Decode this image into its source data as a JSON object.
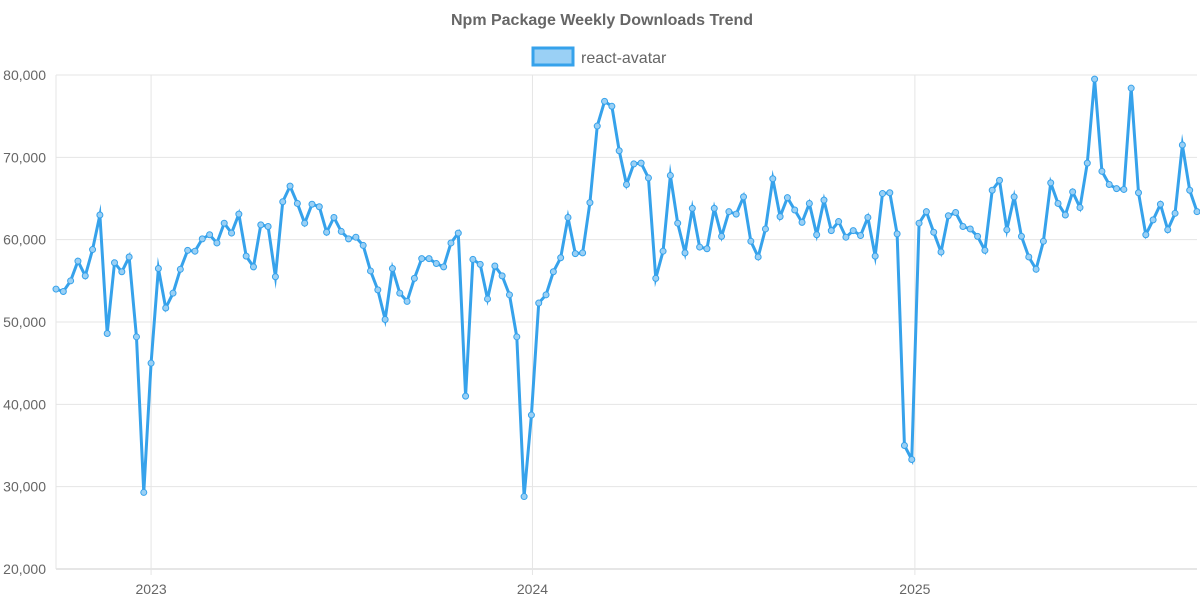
{
  "chart_data": {
    "type": "line",
    "title": "Npm Package Weekly Downloads Trend",
    "xlabel": "",
    "ylabel": "",
    "ylim": [
      20000,
      80000
    ],
    "y_ticks": [
      20000,
      30000,
      40000,
      50000,
      60000,
      70000,
      80000
    ],
    "y_tick_labels": [
      "20,000",
      "30,000",
      "40,000",
      "50,000",
      "60,000",
      "70,000",
      "80,000"
    ],
    "x_range": [
      "2022-10-02",
      "2025-09-28"
    ],
    "x_ticks": [
      "2023-01-01",
      "2024-01-01",
      "2025-01-01"
    ],
    "x_tick_labels": [
      "2023",
      "2024",
      "2025"
    ],
    "grid": true,
    "legend_position": "top-center",
    "colors": {
      "line": "#36a2eb",
      "fill": "#9ad0f5"
    },
    "series": [
      {
        "name": "react-avatar",
        "x": [
          "2022-10-02",
          "2022-10-09",
          "2022-10-16",
          "2022-10-23",
          "2022-10-30",
          "2022-11-06",
          "2022-11-13",
          "2022-11-20",
          "2022-11-27",
          "2022-12-04",
          "2022-12-11",
          "2022-12-18",
          "2022-12-25",
          "2023-01-01",
          "2023-01-08",
          "2023-01-15",
          "2023-01-22",
          "2023-01-29",
          "2023-02-05",
          "2023-02-12",
          "2023-02-19",
          "2023-02-26",
          "2023-03-05",
          "2023-03-12",
          "2023-03-19",
          "2023-03-26",
          "2023-04-02",
          "2023-04-09",
          "2023-04-16",
          "2023-04-23",
          "2023-04-30",
          "2023-05-07",
          "2023-05-14",
          "2023-05-21",
          "2023-05-28",
          "2023-06-04",
          "2023-06-11",
          "2023-06-18",
          "2023-06-25",
          "2023-07-02",
          "2023-07-09",
          "2023-07-16",
          "2023-07-23",
          "2023-07-30",
          "2023-08-06",
          "2023-08-13",
          "2023-08-20",
          "2023-08-27",
          "2023-09-03",
          "2023-09-10",
          "2023-09-17",
          "2023-09-24",
          "2023-10-01",
          "2023-10-08",
          "2023-10-15",
          "2023-10-22",
          "2023-10-29",
          "2023-11-05",
          "2023-11-12",
          "2023-11-19",
          "2023-11-26",
          "2023-12-03",
          "2023-12-10",
          "2023-12-17",
          "2023-12-24",
          "2023-12-31",
          "2024-01-07",
          "2024-01-14",
          "2024-01-21",
          "2024-01-28",
          "2024-02-04",
          "2024-02-11",
          "2024-02-18",
          "2024-02-25",
          "2024-03-03",
          "2024-03-10",
          "2024-03-17",
          "2024-03-24",
          "2024-03-31",
          "2024-04-07",
          "2024-04-14",
          "2024-04-21",
          "2024-04-28",
          "2024-05-05",
          "2024-05-12",
          "2024-05-19",
          "2024-05-26",
          "2024-06-02",
          "2024-06-09",
          "2024-06-16",
          "2024-06-23",
          "2024-06-30",
          "2024-07-07",
          "2024-07-14",
          "2024-07-21",
          "2024-07-28",
          "2024-08-04",
          "2024-08-11",
          "2024-08-18",
          "2024-08-25",
          "2024-09-01",
          "2024-09-08",
          "2024-09-15",
          "2024-09-22",
          "2024-09-29",
          "2024-10-06",
          "2024-10-13",
          "2024-10-20",
          "2024-10-27",
          "2024-11-03",
          "2024-11-10",
          "2024-11-17",
          "2024-11-24",
          "2024-12-01",
          "2024-12-08",
          "2024-12-15",
          "2024-12-22",
          "2024-12-29",
          "2025-01-05",
          "2025-01-12",
          "2025-01-19",
          "2025-01-26",
          "2025-02-02",
          "2025-02-09",
          "2025-02-16",
          "2025-02-23",
          "2025-03-02",
          "2025-03-09",
          "2025-03-16",
          "2025-03-23",
          "2025-03-30",
          "2025-04-06",
          "2025-04-13",
          "2025-04-20",
          "2025-04-27",
          "2025-05-04",
          "2025-05-11",
          "2025-05-18",
          "2025-05-25",
          "2025-06-01",
          "2025-06-08",
          "2025-06-15",
          "2025-06-22",
          "2025-06-29",
          "2025-07-06",
          "2025-07-13",
          "2025-07-20",
          "2025-07-27",
          "2025-08-03",
          "2025-08-10",
          "2025-08-17",
          "2025-08-24",
          "2025-08-31",
          "2025-09-07",
          "2025-09-14",
          "2025-09-21",
          "2025-09-28"
        ],
        "values": [
          54000,
          53700,
          55000,
          57400,
          55600,
          58800,
          63000,
          48600,
          57200,
          56100,
          57900,
          48200,
          29300,
          45000,
          56500,
          51700,
          53500,
          56400,
          58700,
          58600,
          60100,
          60600,
          59600,
          62000,
          60800,
          63100,
          58000,
          56700,
          61800,
          61600,
          55500,
          64600,
          66500,
          64400,
          62000,
          64300,
          64000,
          60900,
          62700,
          61000,
          60100,
          60300,
          59300,
          56200,
          53900,
          50300,
          56500,
          53500,
          52500,
          55300,
          57700,
          57700,
          57100,
          56700,
          59600,
          60800,
          41000,
          57600,
          57000,
          52800,
          56800,
          55600,
          53300,
          48200,
          28800,
          38700,
          52300,
          53300,
          56100,
          57800,
          62700,
          58300,
          58400,
          64500,
          73800,
          76800,
          76200,
          70800,
          66700,
          69200,
          69300,
          67500,
          55300,
          58600,
          67800,
          62000,
          58400,
          63800,
          59100,
          58900,
          63800,
          60400,
          63400,
          63100,
          65200,
          59800,
          57900,
          61300,
          67400,
          62800,
          65100,
          63600,
          62100,
          64400,
          60600,
          64800,
          61100,
          62200,
          60300,
          61100,
          60500,
          62700,
          58000,
          65600,
          65700,
          60700,
          35000,
          33300,
          62000,
          63400,
          60900,
          58500,
          62900,
          63300,
          61600,
          61300,
          60400,
          58700,
          66000,
          67200,
          61200,
          65200,
          60400,
          57900,
          56400,
          59800,
          66900,
          64400,
          63000,
          65800,
          63900,
          69300,
          79500,
          68300,
          66700,
          66200,
          66100,
          78400,
          65700,
          60600,
          62400,
          64300,
          61200,
          63200,
          71500,
          66000,
          63400
        ]
      }
    ]
  }
}
